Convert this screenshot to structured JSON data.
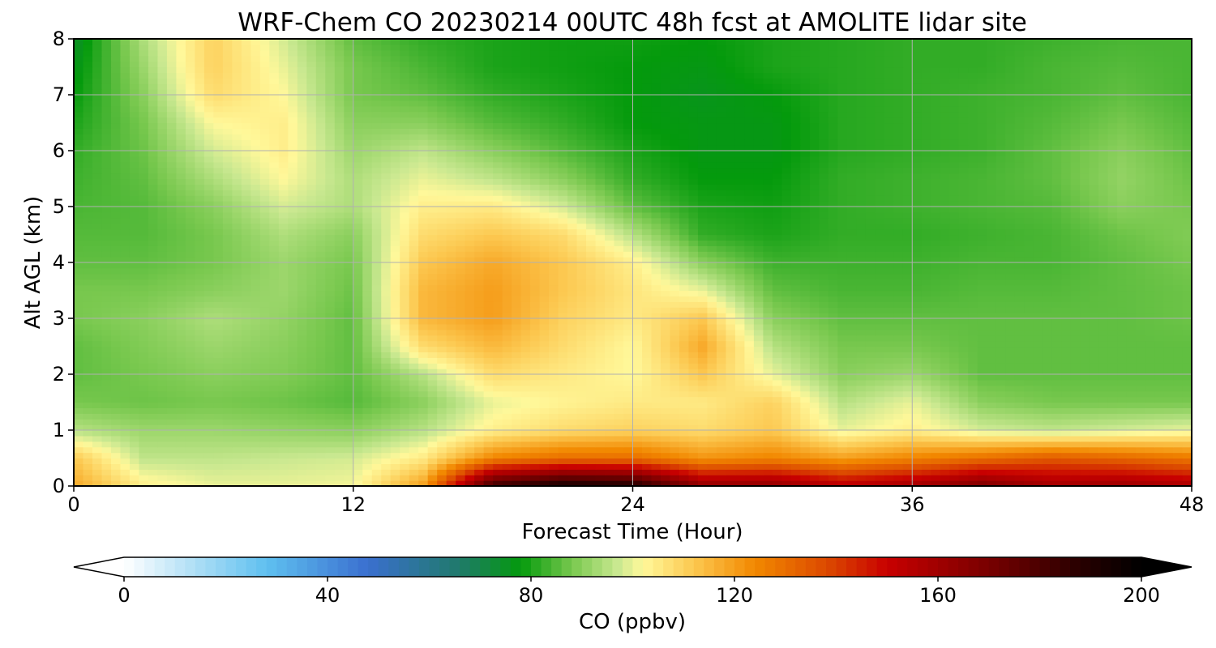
{
  "chart_data": {
    "type": "heatmap",
    "title": "WRF-Chem CO  20230214 00UTC 48h fcst at AMOLITE lidar site",
    "xlabel": "Forecast Time (Hour)",
    "ylabel": "Alt AGL (km)",
    "xlim": [
      0,
      48
    ],
    "ylim": [
      0,
      8
    ],
    "x_ticks": [
      "0",
      "12",
      "24",
      "36",
      "48"
    ],
    "y_ticks": [
      "0",
      "1",
      "2",
      "3",
      "4",
      "5",
      "6",
      "7",
      "8"
    ],
    "grid": true,
    "x": [
      0,
      3,
      6,
      9,
      12,
      15,
      18,
      21,
      24,
      27,
      30,
      33,
      36,
      39,
      42,
      45,
      48
    ],
    "y": [
      0,
      0.5,
      1,
      1.5,
      2,
      2.5,
      3,
      3.5,
      4,
      4.5,
      5,
      5.5,
      6,
      6.5,
      7,
      7.5,
      8
    ],
    "z": [
      [
        118,
        104,
        100,
        100,
        101,
        120,
        185,
        195,
        192,
        165,
        165,
        155,
        160,
        170,
        160,
        162,
        158
      ],
      [
        112,
        96,
        96,
        97,
        98,
        105,
        125,
        130,
        130,
        122,
        125,
        120,
        125,
        130,
        135,
        132,
        128
      ],
      [
        95,
        92,
        92,
        91,
        90,
        95,
        104,
        108,
        110,
        108,
        112,
        100,
        104,
        98,
        96,
        98,
        100
      ],
      [
        88,
        87,
        88,
        87,
        85,
        90,
        100,
        103,
        105,
        105,
        110,
        95,
        100,
        90,
        88,
        88,
        88
      ],
      [
        86,
        88,
        90,
        89,
        86,
        95,
        108,
        105,
        102,
        112,
        100,
        90,
        92,
        86,
        86,
        86,
        86
      ],
      [
        86,
        89,
        92,
        90,
        86,
        108,
        115,
        108,
        102,
        118,
        95,
        88,
        88,
        86,
        86,
        86,
        86
      ],
      [
        88,
        90,
        94,
        91,
        86,
        115,
        120,
        110,
        105,
        112,
        90,
        86,
        86,
        86,
        86,
        86,
        87
      ],
      [
        88,
        88,
        90,
        92,
        87,
        115,
        120,
        112,
        106,
        100,
        86,
        84,
        84,
        85,
        85,
        86,
        87
      ],
      [
        86,
        86,
        88,
        92,
        88,
        112,
        118,
        112,
        104,
        90,
        83,
        83,
        83,
        84,
        84,
        86,
        88
      ],
      [
        85,
        85,
        88,
        94,
        90,
        108,
        112,
        108,
        95,
        82,
        80,
        82,
        82,
        83,
        84,
        87,
        89
      ],
      [
        84,
        85,
        90,
        98,
        94,
        104,
        105,
        98,
        86,
        80,
        79,
        82,
        83,
        84,
        85,
        90,
        88
      ],
      [
        83,
        86,
        94,
        102,
        94,
        100,
        96,
        90,
        82,
        78,
        78,
        82,
        83,
        84,
        86,
        91,
        87
      ],
      [
        82,
        87,
        98,
        104,
        92,
        96,
        90,
        85,
        80,
        77,
        77,
        81,
        82,
        83,
        86,
        90,
        86
      ],
      [
        80,
        88,
        102,
        104,
        90,
        90,
        85,
        82,
        78,
        77,
        77,
        81,
        82,
        83,
        85,
        88,
        85
      ],
      [
        78,
        90,
        108,
        102,
        88,
        86,
        82,
        80,
        78,
        76,
        78,
        81,
        82,
        83,
        84,
        86,
        84
      ],
      [
        76,
        92,
        110,
        100,
        88,
        84,
        80,
        79,
        78,
        77,
        80,
        81,
        82,
        82,
        84,
        85,
        84
      ],
      [
        74,
        94,
        110,
        98,
        86,
        82,
        80,
        79,
        79,
        78,
        80,
        81,
        82,
        82,
        83,
        84,
        84
      ]
    ],
    "colorbar": {
      "label": "CO  (ppbv)",
      "range": [
        0,
        200
      ],
      "ticks": [
        "0",
        "40",
        "80",
        "120",
        "160",
        "200"
      ],
      "extend": "both",
      "stops": [
        {
          "v": 0,
          "c": "#ffffff"
        },
        {
          "v": 15,
          "c": "#a8dcf5"
        },
        {
          "v": 28,
          "c": "#5fc0f0"
        },
        {
          "v": 48,
          "c": "#3a6fcf"
        },
        {
          "v": 66,
          "c": "#1f7a6a"
        },
        {
          "v": 78,
          "c": "#049a0c"
        },
        {
          "v": 88,
          "c": "#78c84e"
        },
        {
          "v": 97,
          "c": "#c9e890"
        },
        {
          "v": 102,
          "c": "#fff89a"
        },
        {
          "v": 112,
          "c": "#fcc850"
        },
        {
          "v": 124,
          "c": "#f28800"
        },
        {
          "v": 138,
          "c": "#dc4a00"
        },
        {
          "v": 150,
          "c": "#c80000"
        },
        {
          "v": 170,
          "c": "#780000"
        },
        {
          "v": 188,
          "c": "#280000"
        },
        {
          "v": 200,
          "c": "#000000"
        }
      ]
    }
  }
}
